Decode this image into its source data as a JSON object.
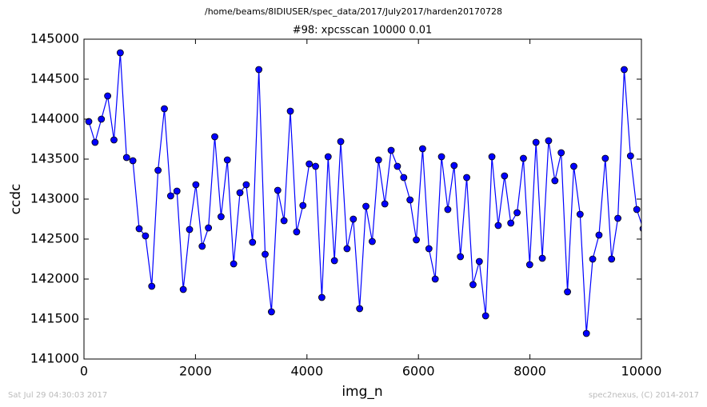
{
  "suptitle": "/home/beams/8IDIUSER/spec_data/2017/July2017/harden20170728",
  "footer_left": "Sat Jul 29 04:30:03 2017",
  "footer_right": "spec2nexus, (C) 2014-2017",
  "chart_data": {
    "type": "line",
    "title": "#98: xpcsscan 10000 0.01",
    "xlabel": "img_n",
    "ylabel": "ccdc",
    "x": [
      86,
      199,
      312,
      425,
      538,
      651,
      764,
      877,
      990,
      1103,
      1216,
      1329,
      1442,
      1555,
      1668,
      1781,
      1894,
      2007,
      2120,
      2233,
      2346,
      2459,
      2572,
      2685,
      2798,
      2911,
      3024,
      3137,
      3250,
      3363,
      3476,
      3589,
      3702,
      3815,
      3928,
      4041,
      4154,
      4267,
      4380,
      4493,
      4606,
      4719,
      4832,
      4945,
      5058,
      5171,
      5284,
      5397,
      5510,
      5623,
      5736,
      5849,
      5962,
      6075,
      6188,
      6301,
      6414,
      6527,
      6640,
      6753,
      6866,
      6979,
      7092,
      7205,
      7318,
      7431,
      7544,
      7657,
      7770,
      7883,
      7996,
      8109,
      8222,
      8335,
      8448,
      8561,
      8674,
      8787,
      8900,
      9013,
      9126,
      9239,
      9352,
      9465,
      9578,
      9691,
      9804,
      9917,
      10030
    ],
    "series": [
      {
        "color": "#0000ff",
        "values": [
          143970,
          143710,
          144000,
          144290,
          143740,
          144830,
          143520,
          143480,
          142630,
          142540,
          141910,
          143360,
          144130,
          143040,
          143100,
          141870,
          142620,
          143180,
          142410,
          142640,
          143780,
          142780,
          143490,
          142190,
          143080,
          143180,
          142460,
          144620,
          142310,
          141590,
          143110,
          142730,
          144100,
          142590,
          142920,
          143440,
          143410,
          141770,
          143530,
          142230,
          143720,
          142380,
          142750,
          141630,
          142910,
          142470,
          143490,
          142940,
          143610,
          143410,
          143270,
          142990,
          142490,
          143630,
          142380,
          142000,
          143530,
          142870,
          143420,
          142280,
          143270,
          141930,
          142220,
          141540,
          143530,
          142670,
          143290,
          142700,
          142830,
          143510,
          142180,
          143710,
          142260,
          143730,
          143230,
          143580,
          141840,
          143410,
          142810,
          141320,
          142250,
          142550,
          143510,
          142250,
          142760,
          144620,
          143540,
          142870,
          142630
        ]
      }
    ],
    "xlim": [
      0,
      10000
    ],
    "ylim": [
      141000,
      145000
    ],
    "xticks": [
      0,
      2000,
      4000,
      6000,
      8000,
      10000
    ],
    "yticks": [
      141000,
      141500,
      142000,
      142500,
      143000,
      143500,
      144000,
      144500,
      145000
    ]
  }
}
